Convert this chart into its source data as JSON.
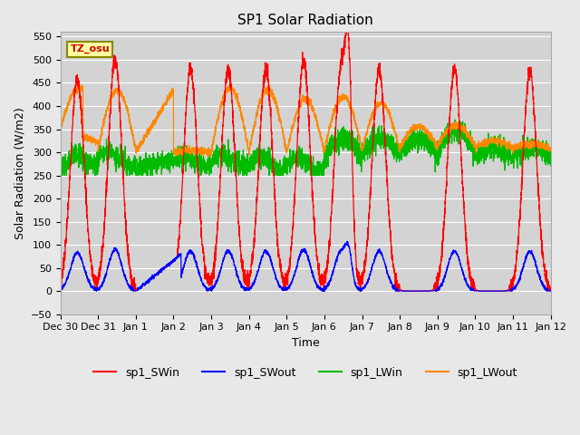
{
  "title": "SP1 Solar Radiation",
  "xlabel": "Time",
  "ylabel": "Solar Radiation (W/m2)",
  "ylim": [
    -50,
    560
  ],
  "background_color": "#e8e8e8",
  "plot_bg_color": "#d3d3d3",
  "grid_color": "#ffffff",
  "tz_label": "TZ_osu",
  "legend_entries": [
    "sp1_SWin",
    "sp1_SWout",
    "sp1_LWin",
    "sp1_LWout"
  ],
  "legend_colors": [
    "#ff0000",
    "#0000ff",
    "#00bb00",
    "#ff8800"
  ],
  "x_tick_labels": [
    "Dec 30",
    "Dec 31",
    "Jan 1",
    "Jan 2",
    "Jan 3",
    "Jan 4",
    "Jan 5",
    "Jan 6",
    "Jan 7",
    "Jan 8",
    "Jan 9",
    "Jan 10",
    "Jan 11",
    "Jan 12"
  ],
  "x_tick_positions": [
    0,
    1,
    2,
    3,
    4,
    5,
    6,
    7,
    8,
    9,
    10,
    11,
    12,
    13
  ],
  "sw_in_peaks": [
    460,
    503,
    0,
    480,
    480,
    480,
    496,
    486,
    280,
    478,
    0,
    480,
    0,
    474
  ],
  "sw_in_centers": [
    0.45,
    1.45,
    2.2,
    3.45,
    4.45,
    5.45,
    6.45,
    7.45,
    7.65,
    8.45,
    9.3,
    10.45,
    11.2,
    12.45
  ],
  "sw_in_widths": [
    0.18,
    0.18,
    0.0,
    0.18,
    0.18,
    0.18,
    0.18,
    0.18,
    0.08,
    0.18,
    0.0,
    0.18,
    0.0,
    0.18
  ],
  "sw_out_scale": 0.18,
  "lw_in_base": 275,
  "lw_in_noise": 12,
  "lw_out_base": 305,
  "lw_out_day1_level": 430,
  "lw_out_day2_level": 435,
  "figsize": [
    6.4,
    4.8
  ],
  "dpi": 100
}
